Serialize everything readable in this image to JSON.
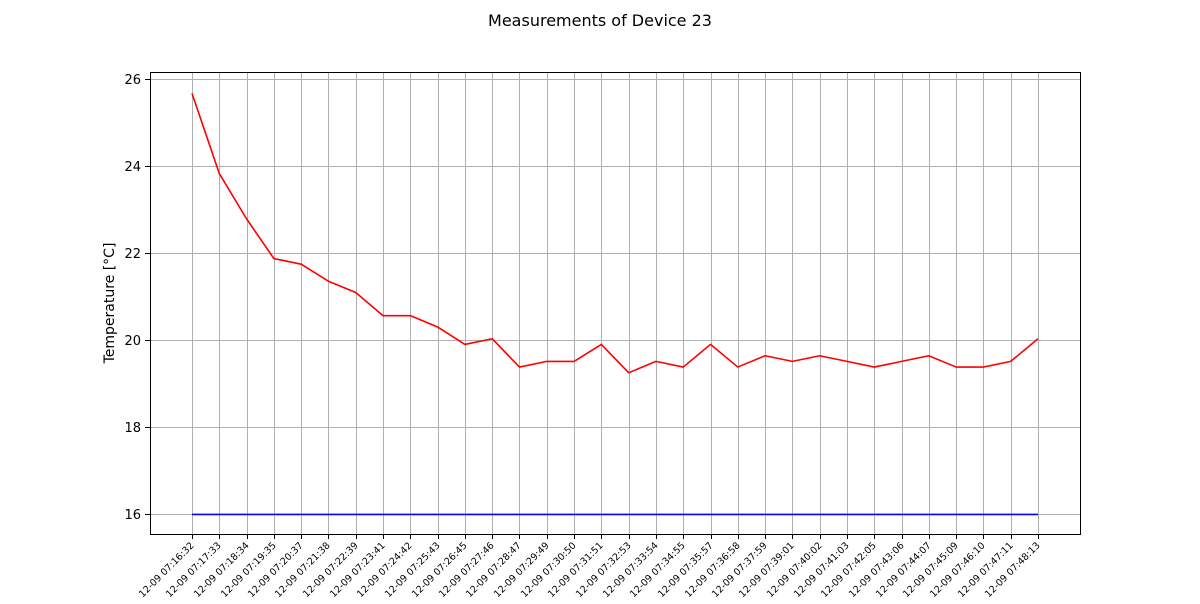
{
  "chart_data": {
    "type": "line",
    "title": "Measurements of Device 23",
    "xlabel": "",
    "ylabel": "Temperature [°C]",
    "ylim": [
      15.55,
      26.15
    ],
    "yticks": [
      16,
      18,
      20,
      22,
      24,
      26
    ],
    "grid": true,
    "categories": [
      "12-09 07:16:32",
      "12-09 07:17:33",
      "12-09 07:18:34",
      "12-09 07:19:35",
      "12-09 07:20:37",
      "12-09 07:21:38",
      "12-09 07:22:39",
      "12-09 07:23:41",
      "12-09 07:24:42",
      "12-09 07:25:43",
      "12-09 07:26:45",
      "12-09 07:27:46",
      "12-09 07:28:47",
      "12-09 07:29:49",
      "12-09 07:30:50",
      "12-09 07:31:51",
      "12-09 07:32:53",
      "12-09 07:33:54",
      "12-09 07:34:55",
      "12-09 07:35:57",
      "12-09 07:36:58",
      "12-09 07:37:59",
      "12-09 07:39:01",
      "12-09 07:40:02",
      "12-09 07:41:03",
      "12-09 07:42:05",
      "12-09 07:43:06",
      "12-09 07:44:07",
      "12-09 07:45:09",
      "12-09 07:46:10",
      "12-09 07:47:11",
      "12-09 07:48:13"
    ],
    "series": [
      {
        "color": "#ff0000",
        "values": [
          25.66,
          23.82,
          22.78,
          21.87,
          21.74,
          21.35,
          21.09,
          20.56,
          20.56,
          20.3,
          19.9,
          20.03,
          19.38,
          19.51,
          19.51,
          19.9,
          19.25,
          19.51,
          19.38,
          19.9,
          19.38,
          19.64,
          19.51,
          19.64,
          19.51,
          19.38,
          19.51,
          19.64,
          19.38,
          19.38,
          19.51,
          20.03
        ]
      },
      {
        "color": "#0000ff",
        "values": [
          16,
          16,
          16,
          16,
          16,
          16,
          16,
          16,
          16,
          16,
          16,
          16,
          16,
          16,
          16,
          16,
          16,
          16,
          16,
          16,
          16,
          16,
          16,
          16,
          16,
          16,
          16,
          16,
          16,
          16,
          16,
          16
        ]
      }
    ]
  }
}
